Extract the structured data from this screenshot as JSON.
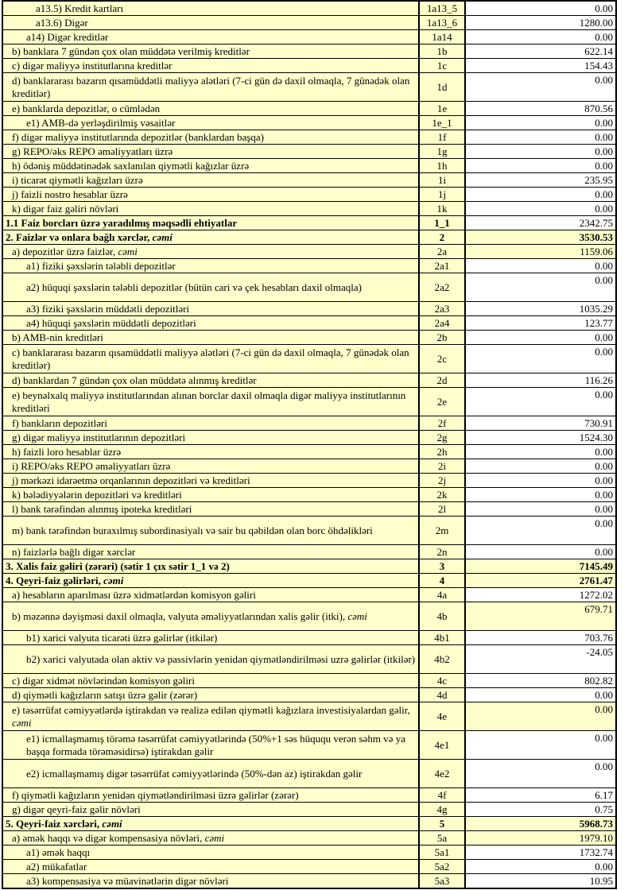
{
  "colors": {
    "band_yellow": "#FFFFCC",
    "input_white": "#FFFFFF",
    "grid_black": "#000000"
  },
  "table": {
    "rows": [
      {
        "label": "a13.5) Kredit kartları",
        "code": "1a13_5",
        "value": "0.00",
        "indent": 3
      },
      {
        "label": "a13.6) Digər",
        "code": "1a13_6",
        "value": "1280.00",
        "indent": 3
      },
      {
        "label": "a14) Digər kreditlər",
        "code": "1a14",
        "value": "0.00",
        "indent": 2
      },
      {
        "label": "b) banklara 7 gündən çox olan müddətə verilmiş kreditlər",
        "code": "1b",
        "value": "622.14",
        "indent": 1
      },
      {
        "label": "c) digər maliyyə institutlarına kreditlər",
        "code": "1c",
        "value": "154.43",
        "indent": 1
      },
      {
        "label": "d) banklararası bazarın qısamüddətli maliyyə alətləri (7-ci gün də daxil olmaqla, 7 günədək olan kreditlər)",
        "code": "1d",
        "value": "0.00",
        "indent": 1,
        "tall": true
      },
      {
        "label": "e) banklarda depozitlər, o cümlədən",
        "code": "1e",
        "value": "870.56",
        "indent": 1
      },
      {
        "label": "e1)  AMB-də yerləşdirilmiş vəsaitlər",
        "code": "1e_1",
        "value": "0.00",
        "indent": 2
      },
      {
        "label": "f) digər maliyyə institutlarında depozitlər (banklardan başqa)",
        "code": "1f",
        "value": "0.00",
        "indent": 1
      },
      {
        "label": "g) REPO/əks REPO əməliyyatları üzrə",
        "code": "1g",
        "value": "0.00",
        "indent": 1
      },
      {
        "label": "h) ödəniş müddətinədək saxlanılan qiymətli kağızlar üzrə",
        "code": "1h",
        "value": "0.00",
        "indent": 1
      },
      {
        "label": "i) ticarət qiymətli kağızları üzrə",
        "code": "1i",
        "value": "235.95",
        "indent": 1
      },
      {
        "label": "j) faizli nostro hesablar üzrə",
        "code": "1j",
        "value": "0.00",
        "indent": 1
      },
      {
        "label": "k) digər faiz gəliri növləri",
        "code": "1k",
        "value": "0.00",
        "indent": 1
      },
      {
        "label": "1.1 Faiz borcları üzrə yaradılmış məqsədli ehtiyatlar",
        "code": "1_1",
        "value": "2342.75",
        "indent": 0,
        "bold": true
      },
      {
        "label": "2. Faizlər və onlara bağlı xərclər, ",
        "italic": "cəmi",
        "code": "2",
        "value": "3530.53",
        "indent": 0,
        "bold": true,
        "value_bold": true,
        "value_bg": "yellow"
      },
      {
        "label": "a) depozitlər üzrə faizlər, ",
        "italic": "cəmi",
        "code": "2a",
        "value": "1159.06",
        "indent": 1,
        "value_bg": "yellow"
      },
      {
        "label": "a1) fiziki şəxslərin tələbli depozitlər",
        "code": "2a1",
        "value": "0.00",
        "indent": 2
      },
      {
        "label": "a2) hüquqi şəxslərin tələbli depozitlər (bütün cari və çek hesabları daxil olmaqla)",
        "code": "2a2",
        "value": "0.00",
        "indent": 2,
        "tall": true
      },
      {
        "label": "a3) fiziki şəxslərin müddətli depozitləri",
        "code": "2a3",
        "value": "1035.29",
        "indent": 2
      },
      {
        "label": "a4) hüquqi şəxslərin müddətli depozitləri",
        "code": "2a4",
        "value": "123.77",
        "indent": 2
      },
      {
        "label": "b) AMB-nin kreditləri",
        "code": "2b",
        "value": "0.00",
        "indent": 1
      },
      {
        "label": "c) banklararası bazarın qısamüddətli maliyyə alətləri (7-ci gün də daxil olmaqla, 7 günədək olan kreditlər)",
        "code": "2c",
        "value": "0.00",
        "indent": 1,
        "tall": true
      },
      {
        "label": "d) banklardan 7 gündən çox olan müddətə alınmış kreditlər",
        "code": "2d",
        "value": "116.26",
        "indent": 1
      },
      {
        "label": "e) beynəlxalq maliyyə institutlarından alınan borclar daxil olmaqla digər maliyyə institutlarının kreditləri",
        "code": "2e",
        "value": "0.00",
        "indent": 1,
        "tall": true
      },
      {
        "label": "f) bankların depozitləri",
        "code": "2f",
        "value": "730.91",
        "indent": 1
      },
      {
        "label": "g) digər maliyyə institutlarının depozitləri",
        "code": "2g",
        "value": "1524.30",
        "indent": 1
      },
      {
        "label": "h) faizli loro hesablar üzrə",
        "code": "2h",
        "value": "0.00",
        "indent": 1
      },
      {
        "label": "i) REPO/əks REPO əməliyyatları üzrə",
        "code": "2i",
        "value": "0.00",
        "indent": 1
      },
      {
        "label": "j) mərkəzi idarəetmə orqanlarının depozitləri və kreditləri",
        "code": "2j",
        "value": "0.00",
        "indent": 1
      },
      {
        "label": "k) bələdiyyələrin depozitləri və kreditləri",
        "code": "2k",
        "value": "0.00",
        "indent": 1
      },
      {
        "label": "l) bank tərəfindən alınmış ipoteka kreditləri",
        "code": "2l",
        "value": "0.00",
        "indent": 1
      },
      {
        "label": "m) bank tərəfindən buraxılmış subordinasiyalı və sair bu qəbildən olan borc öhdəlikləri",
        "code": "2m",
        "value": "0.00",
        "indent": 1,
        "tall": true
      },
      {
        "label": "n) faizlərlə bağlı digər xərclər",
        "code": "2n",
        "value": "0.00",
        "indent": 1
      },
      {
        "label": "3. Xalis faiz gəliri (zərəri) (sətir 1 çıx sətir 1_1 və 2)",
        "code": "3",
        "value": "7145.49",
        "indent": 0,
        "bold": true,
        "value_bold": true,
        "value_bg": "yellow"
      },
      {
        "label": "4. Qeyri-faiz gəlirləri, ",
        "italic": "cəmi",
        "code": "4",
        "value": "2761.47",
        "indent": 0,
        "bold": true,
        "value_bold": true,
        "value_bg": "yellow"
      },
      {
        "label": "a) hesabların aparılması üzrə xidmətlərdən komisyon gəliri",
        "code": "4a",
        "value": "1272.02",
        "indent": 1
      },
      {
        "label": "b) məzənnə dəyişməsi daxil olmaqla, valyuta əməliyyatlarından xalis gəlir (itki), ",
        "italic": "cəmi",
        "code": "4b",
        "value": "679.71",
        "indent": 1,
        "tall": true,
        "value_bg": "yellow"
      },
      {
        "label": "b1) xarici valyuta ticarəti üzrə gəlirlər (itkilər)",
        "code": "4b1",
        "value": "703.76",
        "indent": 2
      },
      {
        "label": "b2) xarici valyutada olan aktiv və passivlərin yenidən qiymətləndirilməsi uzrə gəlirlər (itkilər)",
        "code": "4b2",
        "value": "-24.05",
        "indent": 2,
        "tall": true
      },
      {
        "label": "c) digər xidmət növlərindən komisyon gəliri",
        "code": "4c",
        "value": "802.82",
        "indent": 1
      },
      {
        "label": "d) qiymətli kağızların satışı üzrə gəlir (zərər)",
        "code": "4d",
        "value": "0.00",
        "indent": 1
      },
      {
        "label": "e) təsərrüfat cəmiyyətlərdə iştirakdan və realizə edilən qiymətli kağızlara investisiyalardan gəlir, ",
        "italic": "cəmi",
        "code": "4e",
        "value": "0.00",
        "indent": 1,
        "tall": true,
        "value_bg": "yellow"
      },
      {
        "label": "e1) icmallaşmamış törəmə təsərrüfat cəmiyyətlərində  (50%+1 səs hüququ verən səhm və ya başqa formada törəməsidirsə) iştirakdan gəlir",
        "code": "4e1",
        "value": "0.00",
        "indent": 2,
        "tall": true
      },
      {
        "label": "e2) icmallaşmamış digər təsərrüfat cəmiyyətlərində (50%-dən az) iştirakdan gəlir",
        "code": "4e2",
        "value": "0.00",
        "indent": 2,
        "tall": true
      },
      {
        "label": "f) qiymətli kağızların yenidən qiymətləndirilməsi üzrə gəlirlər (zərər)",
        "code": "4f",
        "value": "6.17",
        "indent": 1
      },
      {
        "label": "g) digər qeyri-faiz gəlir növləri",
        "code": "4g",
        "value": "0.75",
        "indent": 1
      },
      {
        "label": "5. Qeyri-faiz xərcləri, ",
        "italic": "cəmi",
        "code": "5",
        "value": "5968.73",
        "indent": 0,
        "bold": true,
        "value_bold": true,
        "value_bg": "yellow"
      },
      {
        "label": "a) əmək haqqı və digər kompensasiya növləri, ",
        "italic": "cəmi",
        "code": "5a",
        "value": "1979.10",
        "indent": 1,
        "value_bg": "yellow"
      },
      {
        "label": "a1) əmək haqqı",
        "code": "5a1",
        "value": "1732.74",
        "indent": 2
      },
      {
        "label": "a2) mükafatlar",
        "code": "5a2",
        "value": "0.00",
        "indent": 2
      },
      {
        "label": "a3) kompensasiya və müavinətlərin digər növləri",
        "code": "5a3",
        "value": "10.95",
        "indent": 2
      }
    ]
  }
}
